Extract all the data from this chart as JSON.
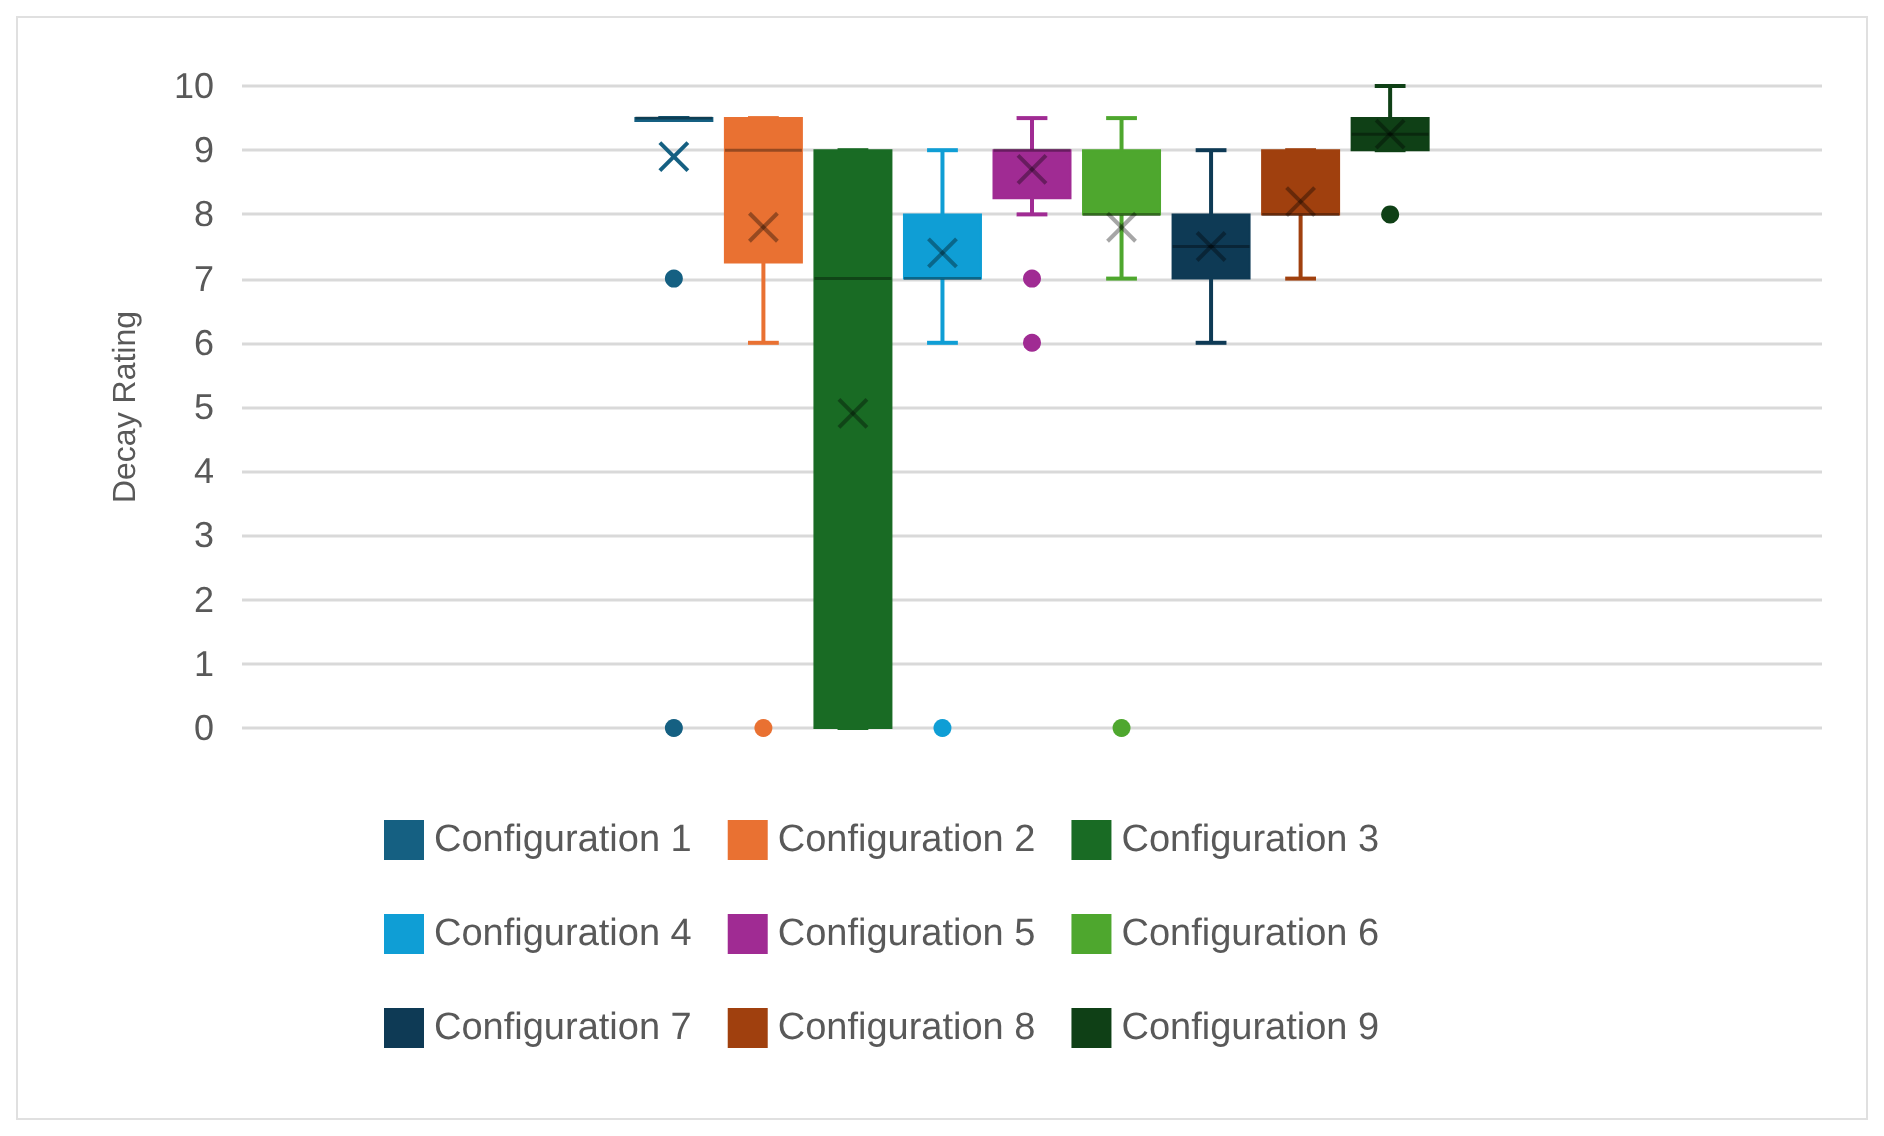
{
  "chart_data": {
    "type": "box",
    "ylabel": "Decay Rating",
    "categories": [
      null
    ],
    "ylim": [
      0,
      10
    ],
    "yticks": [
      0,
      1,
      2,
      3,
      4,
      5,
      6,
      7,
      8,
      9,
      10
    ],
    "grid": "y",
    "legend": "bottom",
    "series": [
      {
        "name": "Configuration 1",
        "color": "#156082",
        "boxes": [
          {
            "low": 9.5,
            "q1": 9.5,
            "median": 9.5,
            "q3": 9.5,
            "high": 9.5,
            "mean": 8.9,
            "outliers": [
              7,
              0
            ]
          }
        ]
      },
      {
        "name": "Configuration 2",
        "color": "#e97132",
        "boxes": [
          {
            "low": 6,
            "q1": 7.25,
            "median": 9,
            "q3": 9.5,
            "high": 9.5,
            "mean": 7.8,
            "outliers": [
              0
            ]
          }
        ]
      },
      {
        "name": "Configuration 3",
        "color": "#196b24",
        "boxes": [
          {
            "low": 0,
            "q1": 0,
            "median": 7,
            "q3": 9,
            "high": 9,
            "mean": 4.9
          }
        ]
      },
      {
        "name": "Configuration 4",
        "color": "#0f9ed5",
        "boxes": [
          {
            "low": 6,
            "q1": 7,
            "median": 7,
            "q3": 8,
            "high": 9,
            "mean": 7.4,
            "outliers": [
              0
            ]
          }
        ]
      },
      {
        "name": "Configuration 5",
        "color": "#a02b93",
        "boxes": [
          {
            "low": 8,
            "q1": 8.25,
            "median": 9,
            "q3": 9,
            "high": 9.5,
            "mean": 8.7,
            "outliers": [
              7,
              6
            ]
          }
        ]
      },
      {
        "name": "Configuration 6",
        "color": "#4ea72e",
        "boxes": [
          {
            "low": 7,
            "q1": 8,
            "median": 8,
            "q3": 9,
            "high": 9.5,
            "mean": 7.8,
            "outliers": [
              0
            ]
          }
        ]
      },
      {
        "name": "Configuration 7",
        "color": "#0e3a55",
        "boxes": [
          {
            "low": 6,
            "q1": 7,
            "median": 7.5,
            "q3": 8,
            "high": 9,
            "mean": 7.5
          }
        ]
      },
      {
        "name": "Configuration 8",
        "color": "#a0400e",
        "boxes": [
          {
            "low": 7,
            "q1": 8,
            "median": 8,
            "q3": 9,
            "high": 9,
            "mean": 8.2
          }
        ]
      },
      {
        "name": "Configuration 9",
        "color": "#0f4016",
        "boxes": [
          {
            "low": 9,
            "q1": 9,
            "median": 9.25,
            "q3": 9.5,
            "high": 10,
            "mean": 9.25,
            "outliers": [
              8
            ]
          }
        ]
      }
    ]
  }
}
